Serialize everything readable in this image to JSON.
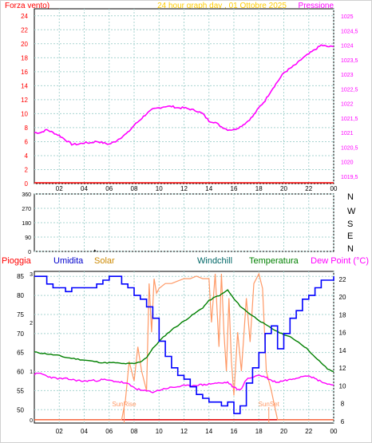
{
  "header": {
    "left_label": "Forza vento)",
    "title": "24 hour graph day , 01 Ottobre 2025",
    "right_label": "Pressione"
  },
  "colors": {
    "frame_border": "#d0d0d0",
    "grid": "#a8d4d0",
    "axis": "#000000",
    "pressure": "#ff00ff",
    "wind": "#ff0000",
    "wind_dir": "#000000",
    "humidity": "#0000ff",
    "solar": "#ff9966",
    "windchill": "#dd0000",
    "temperature": "#008000",
    "dewpoint": "#ff00ff",
    "rain": "#ff0000",
    "title": "#ffcc00",
    "left_axis_labels": "#ff0000",
    "right_axis_labels": "#ff00ff"
  },
  "chart_data": [
    {
      "id": "pressure_wind",
      "type": "line",
      "title": "24 hour graph day , 01 Ottobre 2025",
      "ylabel_left": "Forza vento)",
      "ylabel_right": "Pressione",
      "x_ticks": [
        "02",
        "04",
        "06",
        "08",
        "10",
        "12",
        "14",
        "16",
        "18",
        "20",
        "22",
        "00"
      ],
      "y_left_ticks": [
        "0",
        "2",
        "4",
        "6",
        "8",
        "10",
        "12",
        "14",
        "16",
        "18",
        "20",
        "22",
        "24"
      ],
      "y_right_ticks": [
        "1019,5",
        "1020",
        "1020,5",
        "1021",
        "1021,5",
        "1022",
        "1022,5",
        "1023",
        "1023,5",
        "1024",
        "1024,5",
        "1025"
      ],
      "x_range": [
        0,
        24
      ],
      "y_left_range": [
        0,
        25
      ],
      "y_right_range": [
        1019.25,
        1025.25
      ],
      "grid": true,
      "series": [
        {
          "name": "Pressione",
          "axis": "right",
          "x": [
            0,
            0.5,
            1,
            1.5,
            2,
            2.5,
            3,
            3.5,
            4,
            4.5,
            5,
            5.5,
            6,
            6.5,
            7,
            7.5,
            8,
            8.5,
            9,
            9.5,
            10,
            10.5,
            11,
            11.5,
            12,
            12.5,
            13,
            13.5,
            14,
            14.5,
            15,
            15.5,
            16,
            16.5,
            17,
            17.5,
            18,
            18.5,
            19,
            19.5,
            20,
            20.5,
            21,
            21.5,
            22,
            22.5,
            23,
            23.5,
            24
          ],
          "values": [
            1021.0,
            1021.0,
            1021.1,
            1021.0,
            1020.9,
            1020.75,
            1020.6,
            1020.6,
            1020.65,
            1020.65,
            1020.7,
            1020.65,
            1020.6,
            1020.7,
            1020.85,
            1021.0,
            1021.25,
            1021.45,
            1021.65,
            1021.8,
            1021.85,
            1021.9,
            1021.9,
            1021.85,
            1021.85,
            1021.8,
            1021.75,
            1021.65,
            1021.4,
            1021.35,
            1021.2,
            1021.1,
            1021.1,
            1021.2,
            1021.35,
            1021.55,
            1021.85,
            1022.1,
            1022.45,
            1022.75,
            1023.05,
            1023.2,
            1023.35,
            1023.55,
            1023.7,
            1023.85,
            1024.0,
            1023.95,
            1023.95
          ]
        },
        {
          "name": "Forza vento",
          "axis": "left",
          "x": [
            0,
            24
          ],
          "values": [
            0,
            0
          ]
        }
      ]
    },
    {
      "id": "wind_direction",
      "type": "scatter",
      "y_ticks": [
        "0",
        "90",
        "180",
        "270",
        "360"
      ],
      "compass_labels": [
        "N",
        "W",
        "S",
        "E",
        "N"
      ],
      "x_range": [
        0,
        24
      ],
      "y_range": [
        0,
        360
      ],
      "grid": true,
      "series": [
        {
          "name": "",
          "x": [
            4.8,
            4.85,
            4.9
          ],
          "values": [
            0,
            6,
            0
          ]
        }
      ]
    },
    {
      "id": "multi",
      "type": "line",
      "legend_labels": [
        "Pioggia",
        "Umidita",
        "Solar",
        "Windchill",
        "Temperatura",
        "Dew Point (°C)"
      ],
      "x_ticks": [
        "02",
        "04",
        "06",
        "08",
        "10",
        "12",
        "14",
        "16",
        "18",
        "20",
        "22",
        "00"
      ],
      "y_left_ticks": [
        "50",
        "55",
        "60",
        "65",
        "70",
        "75",
        "80",
        "85"
      ],
      "y_right_ticks": [
        "6",
        "8",
        "10",
        "12",
        "14",
        "16",
        "18",
        "20",
        "22"
      ],
      "y_small_ticks": [
        "0",
        "1",
        "2",
        "3"
      ],
      "x_range": [
        0,
        24
      ],
      "y_left_range": [
        46.5,
        86.3
      ],
      "y_right_range": [
        5.8,
        22.9
      ],
      "annotations": [
        "SunRise",
        "SunSet"
      ],
      "grid": true,
      "series": [
        {
          "name": "Umidita",
          "axis": "left",
          "x": [
            0,
            0.5,
            1,
            1.5,
            2,
            2.5,
            3,
            3.5,
            4,
            4.5,
            5,
            5.5,
            6,
            6.5,
            7,
            7.5,
            8,
            8.5,
            9,
            9.5,
            10,
            10.5,
            11,
            11.5,
            12,
            12.5,
            13,
            13.5,
            14,
            14.5,
            15,
            15.5,
            16,
            16.5,
            17,
            17.5,
            18,
            18.5,
            19,
            19.5,
            20,
            20.5,
            21,
            21.5,
            22,
            22.5,
            23,
            23.5,
            24
          ],
          "values": [
            85,
            85,
            83,
            82,
            82,
            81,
            82,
            82,
            82,
            82,
            83,
            84,
            85,
            85,
            83,
            82,
            80,
            79,
            77,
            74,
            68,
            64,
            61,
            59,
            58,
            56,
            54,
            53,
            52,
            52,
            51,
            52,
            49,
            51,
            57,
            61,
            65,
            70,
            72,
            66,
            70,
            74,
            76,
            79,
            80,
            82,
            84,
            84,
            85
          ]
        },
        {
          "name": "Solar",
          "axis": "small",
          "x": [
            0,
            7.0,
            7.3,
            7.6,
            8.0,
            8.3,
            8.6,
            9.0,
            9.2,
            9.4,
            9.6,
            9.8,
            10.0,
            10.5,
            11,
            11.5,
            12,
            12.5,
            13,
            13.5,
            14,
            14.2,
            14.5,
            14.8,
            15.0,
            15.2,
            15.4,
            15.6,
            15.8,
            16.0,
            16.3,
            16.6,
            17.0,
            17.3,
            17.6,
            18.0,
            18.3,
            18.6,
            19.0,
            19.5,
            24
          ],
          "values": [
            0,
            0,
            0.4,
            1.2,
            0.8,
            1.5,
            1.0,
            0.6,
            2.8,
            1.8,
            2.9,
            2.6,
            2.7,
            2.8,
            2.8,
            2.85,
            2.9,
            2.9,
            2.95,
            2.9,
            2.9,
            2.0,
            3.0,
            1.5,
            3.0,
            1.8,
            1.0,
            2.5,
            1.2,
            0.5,
            1.8,
            1.0,
            2.5,
            1.6,
            2.8,
            3.0,
            2.7,
            1.0,
            0.6,
            0,
            0
          ]
        },
        {
          "name": "Windchill",
          "axis": "right",
          "x": [
            0,
            24
          ],
          "values": [
            6.0,
            6.0
          ]
        },
        {
          "name": "Temperatura",
          "axis": "right",
          "x": [
            0,
            0.5,
            1,
            1.5,
            2,
            2.5,
            3,
            3.5,
            4,
            4.5,
            5,
            5.5,
            6,
            6.5,
            7,
            7.5,
            8,
            8.5,
            9,
            9.5,
            10,
            10.5,
            11,
            11.5,
            12,
            12.5,
            13,
            13.5,
            14,
            14.5,
            15,
            15.5,
            16,
            16.5,
            17,
            17.5,
            18,
            18.5,
            19,
            19.5,
            20,
            20.5,
            21,
            21.5,
            22,
            22.5,
            23,
            23.5,
            24
          ],
          "values": [
            13.8,
            13.7,
            13.6,
            13.5,
            13.4,
            13.2,
            13.1,
            13.0,
            12.9,
            12.8,
            12.7,
            12.6,
            12.6,
            12.6,
            12.5,
            12.5,
            12.5,
            12.7,
            13.2,
            14.2,
            15.0,
            15.7,
            16.3,
            16.8,
            17.3,
            17.8,
            18.3,
            18.8,
            19.6,
            20.0,
            20.3,
            20.8,
            19.8,
            19.0,
            18.4,
            17.9,
            17.4,
            16.9,
            16.5,
            16.1,
            15.8,
            15.5,
            15.1,
            14.6,
            14.0,
            13.2,
            12.6,
            11.9,
            11.6
          ]
        },
        {
          "name": "Dew Point (°C)",
          "axis": "right",
          "x": [
            0,
            0.5,
            1,
            1.5,
            2,
            2.5,
            3,
            3.5,
            4,
            4.5,
            5,
            5.5,
            6,
            6.5,
            7,
            7.5,
            8,
            8.5,
            9,
            9.5,
            10,
            10.5,
            11,
            11.5,
            12,
            12.5,
            13,
            13.5,
            14,
            14.5,
            15,
            15.5,
            16,
            16.5,
            17,
            17.5,
            18,
            18.5,
            19,
            19.5,
            20,
            20.5,
            21,
            21.5,
            22,
            22.5,
            23,
            23.5,
            24
          ],
          "values": [
            11.3,
            11.4,
            11.1,
            10.9,
            10.8,
            10.8,
            10.7,
            10.6,
            10.5,
            10.6,
            10.6,
            10.7,
            10.6,
            10.5,
            10.4,
            10.2,
            9.8,
            9.5,
            9.4,
            9.3,
            9.5,
            9.7,
            9.8,
            9.9,
            10.0,
            10.0,
            10.1,
            10.1,
            10.2,
            10.3,
            10.3,
            10.4,
            9.8,
            9.5,
            10.7,
            11.0,
            11.2,
            11.0,
            10.6,
            10.4,
            10.6,
            10.7,
            10.9,
            11.1,
            11.2,
            10.8,
            10.5,
            10.2,
            10.1
          ]
        },
        {
          "name": "Pioggia",
          "axis": "small",
          "x": [
            0,
            24
          ],
          "values": [
            0,
            0
          ]
        }
      ]
    }
  ]
}
